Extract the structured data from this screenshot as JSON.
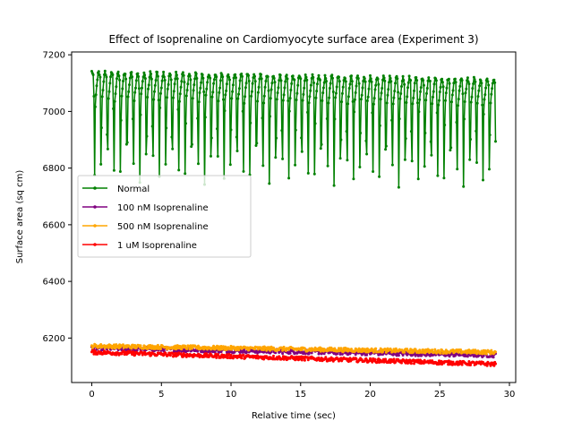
{
  "chart_data": {
    "type": "line",
    "title": "Effect of Isoprenaline on Cardiomyocyte surface area (Experiment 3)",
    "xlabel": "Relative time (sec)",
    "ylabel": "Surface area (sq cm)",
    "xlim": [
      -1.45,
      30.45
    ],
    "ylim": [
      6043,
      7210
    ],
    "x_ticks": [
      0,
      5,
      10,
      15,
      20,
      25,
      30
    ],
    "y_ticks": [
      6200,
      6400,
      6600,
      6800,
      7000,
      7200
    ],
    "grid": false,
    "legend_position": "center-left",
    "series": [
      {
        "name": "Normal",
        "color": "#008000",
        "waveform": "oscillating",
        "t_start": 0,
        "t_end": 29.0,
        "sample_interval": 0.05,
        "cycle_period": 0.465,
        "peak_start": 7140,
        "peak_end": 7115,
        "trough_start": 6750,
        "trough_end": 6730
      },
      {
        "name": "100 nM Isoprenaline",
        "color": "#800080",
        "waveform": "noisy-flat",
        "t_start": 0,
        "t_end": 29.0,
        "sample_interval": 0.05,
        "mean_start": 6165,
        "mean_end": 6140,
        "noise": 8
      },
      {
        "name": "500 nM Isoprenaline",
        "color": "#FFA500",
        "waveform": "noisy-flat",
        "t_start": 0,
        "t_end": 29.0,
        "sample_interval": 0.05,
        "mean_start": 6172,
        "mean_end": 6150,
        "noise": 7
      },
      {
        "name": "1 uM Isoprenaline",
        "color": "#FF0000",
        "waveform": "noisy-flat",
        "t_start": 0,
        "t_end": 29.0,
        "sample_interval": 0.05,
        "mean_start": 6150,
        "mean_end": 6108,
        "noise": 7
      }
    ]
  }
}
